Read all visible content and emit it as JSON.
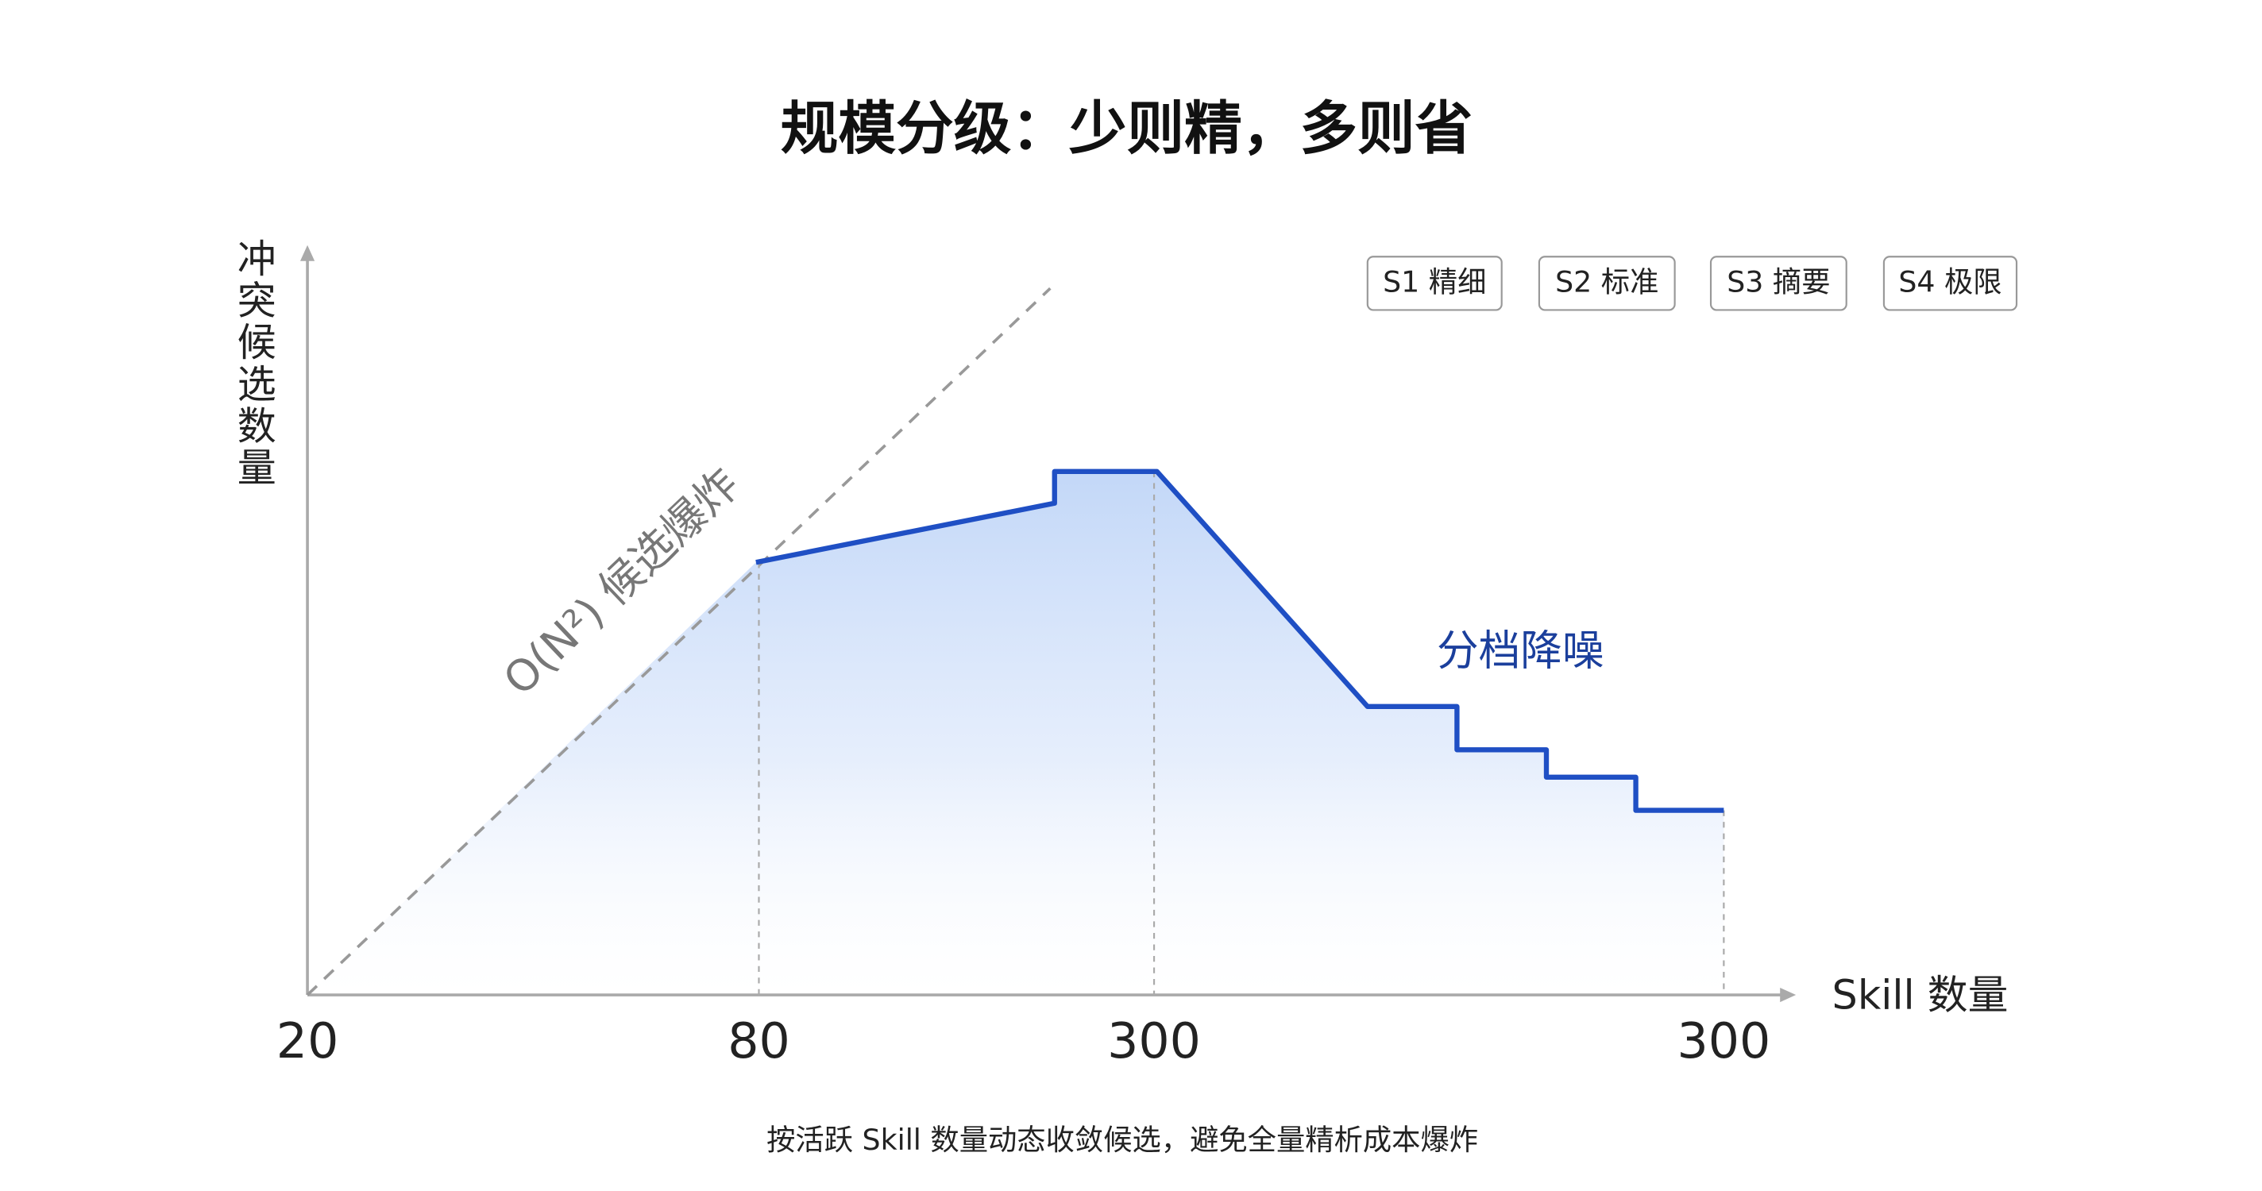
{
  "header": {
    "title": "规模分级：少则精，多则省"
  },
  "axes": {
    "y_label": "冲突候选数量",
    "x_label": "Skill 数量",
    "x_labels": [
      "20",
      "80",
      "300",
      "300"
    ]
  },
  "legend": [
    "S1 精细",
    "S2 标准",
    "S3 摘要",
    "S4 极限"
  ],
  "annotations": {
    "diagonal": "O(N²) 候选爆炸",
    "curve": "分档降噪"
  },
  "caption": "按活跃 Skill 数量动态收敛候选，避免全量精析成本爆炸"
}
